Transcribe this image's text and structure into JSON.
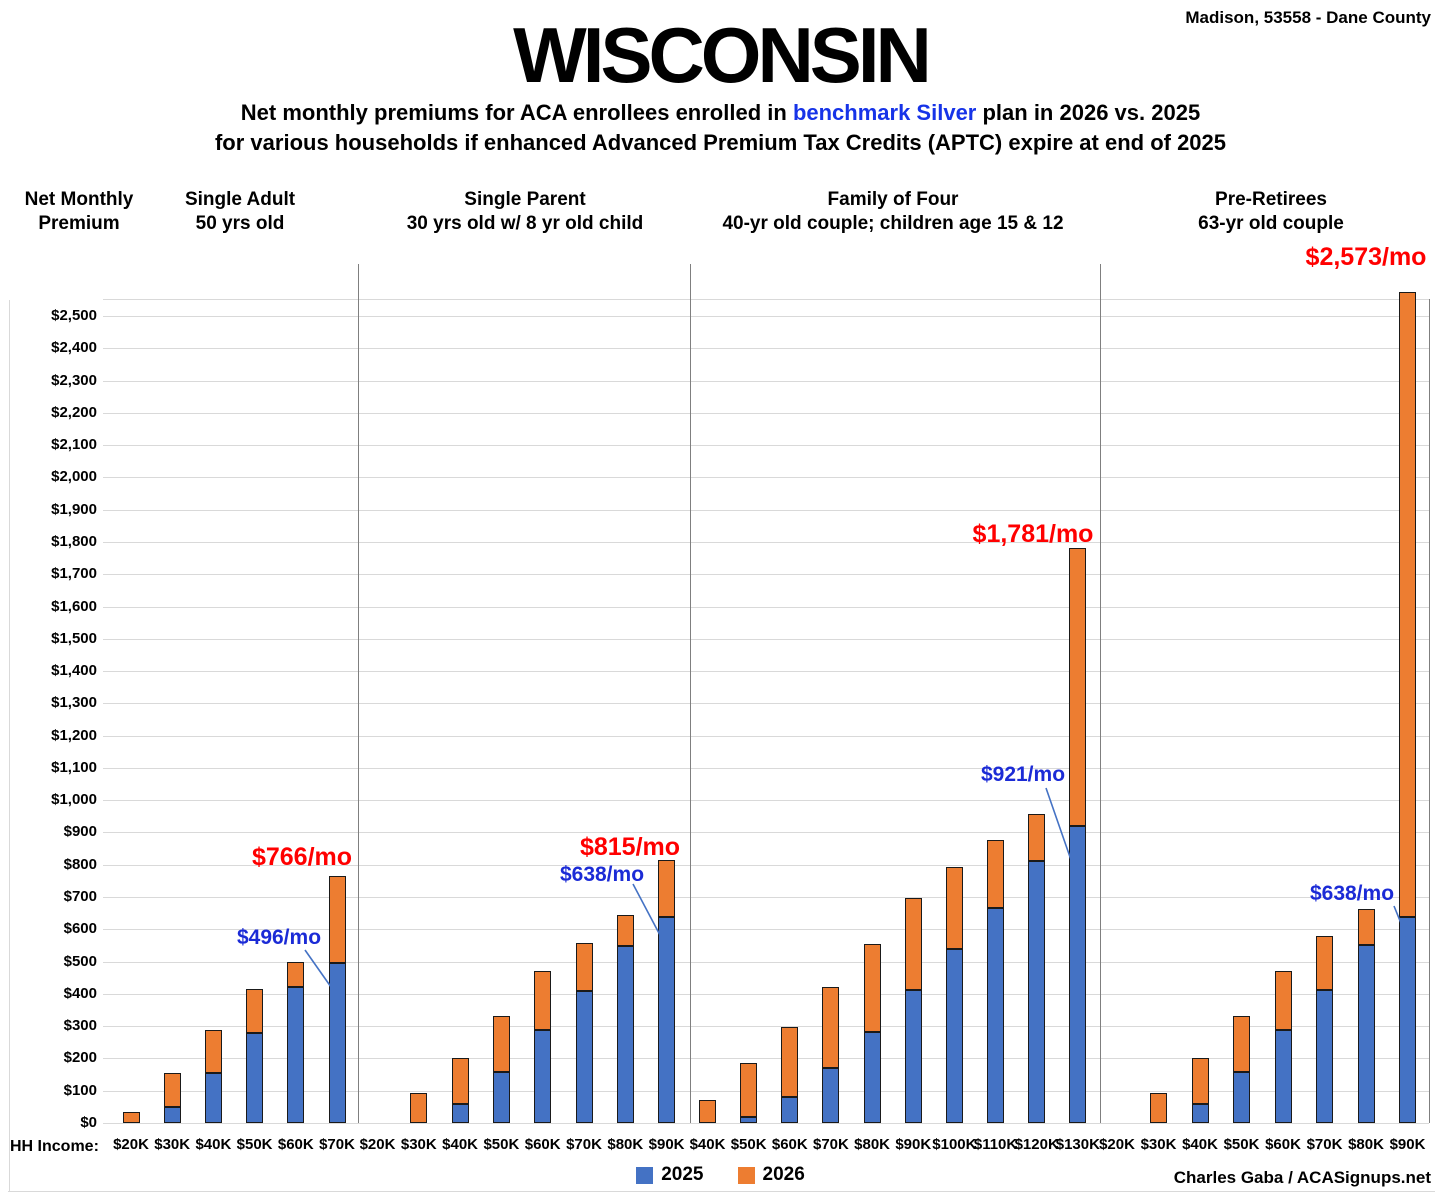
{
  "header": {
    "location": "Madison, 53558 - Dane County",
    "title": "WISCONSIN",
    "subtitle_pre": "Net monthly premiums for ACA enrollees enrolled in ",
    "subtitle_highlight": "benchmark Silver",
    "subtitle_post": " plan in 2026 vs. 2025",
    "subtitle_line2": "for various households if enhanced Advanced Premium Tax Credits (APTC) expire at end of 2025"
  },
  "axis": {
    "y_title": "Net Monthly\nPremium",
    "x_title": "HH Income:"
  },
  "legend": {
    "items": [
      {
        "label": "2025",
        "color": "#4472C4"
      },
      {
        "label": "2026",
        "color": "#ED7D31"
      }
    ]
  },
  "footer": {
    "credit": "Charles Gaba / ACASignups.net"
  },
  "colors": {
    "bar_2025": "#4472C4",
    "bar_2026": "#ED7D31",
    "callout_2026_text": "#ff0000",
    "callout_2025_text": "#1b2bd6",
    "subtitle_highlight": "#1633e8"
  },
  "chart_data": {
    "type": "bar",
    "stacked": true,
    "ylim": [
      0,
      2500
    ],
    "ytick_step": 100,
    "grid": true,
    "legend_position": "bottom",
    "series_names": [
      "2025",
      "2026"
    ],
    "note": "values_2025 = net monthly premium in 2025 (blue); totals_2026 = net monthly premium in 2026 (full bar: orange segment = 2026 minus 2025)",
    "groups": [
      {
        "label": "Single Adult\n50 yrs old",
        "categories": [
          "$20K",
          "$30K",
          "$40K",
          "$50K",
          "$60K",
          "$70K"
        ],
        "values_2025": [
          0,
          50,
          155,
          280,
          420,
          496
        ],
        "totals_2026": [
          35,
          155,
          288,
          415,
          500,
          766
        ],
        "callout_2026": "$766/mo",
        "callout_2025": "$496/mo"
      },
      {
        "label": "Single Parent\n30 yrs old w/ 8 yr old child",
        "categories": [
          "$20K",
          "$30K",
          "$40K",
          "$50K",
          "$60K",
          "$70K",
          "$80K",
          "$90K"
        ],
        "values_2025": [
          0,
          0,
          60,
          157,
          287,
          410,
          549,
          638
        ],
        "totals_2026": [
          0,
          93,
          200,
          332,
          472,
          558,
          644,
          815
        ],
        "callout_2026": "$815/mo",
        "callout_2025": "$638/mo"
      },
      {
        "label": "Family of Four\n40-yr old couple; children age 15 & 12",
        "categories": [
          "$40K",
          "$50K",
          "$60K",
          "$70K",
          "$80K",
          "$90K",
          "$100K",
          "$110K",
          "$120K",
          "$130K"
        ],
        "values_2025": [
          0,
          20,
          82,
          170,
          281,
          413,
          538,
          666,
          812,
          921
        ],
        "totals_2026": [
          70,
          185,
          297,
          420,
          556,
          698,
          792,
          876,
          958,
          1781
        ],
        "callout_2026": "$1,781/mo",
        "callout_2025": "$921/mo"
      },
      {
        "label": "Pre-Retirees\n63-yr old couple",
        "categories": [
          "$20K",
          "$30K",
          "$40K",
          "$50K",
          "$60K",
          "$70K",
          "$80K",
          "$90K"
        ],
        "values_2025": [
          0,
          0,
          60,
          157,
          287,
          412,
          550,
          638
        ],
        "totals_2026": [
          0,
          93,
          200,
          332,
          470,
          578,
          662,
          2573
        ],
        "callout_2026": "$2,573/mo",
        "callout_2025": "$638/mo"
      }
    ]
  }
}
